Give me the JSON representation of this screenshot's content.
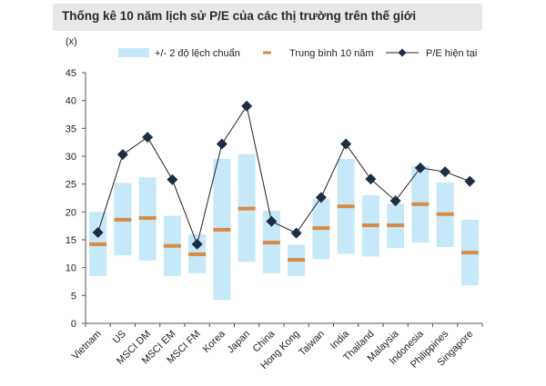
{
  "title": "Thống kê 10 năm lịch sử P/E của các thị trường trên thế giới",
  "chart_data": {
    "type": "range-bar-line",
    "title": "Thống kê 10 năm lịch sử P/E của các thị trường trên thế giới",
    "ylabel": "(x)",
    "xlabel": "",
    "ylim": [
      0,
      45
    ],
    "yticks": [
      0,
      5,
      10,
      15,
      20,
      25,
      30,
      35,
      40,
      45
    ],
    "grid": false,
    "legend_position": "top",
    "categories": [
      "Vietnam",
      "US",
      "MSCI DM",
      "MSCI EM",
      "MSCI FM",
      "Korea",
      "Japan",
      "China",
      "Hong Kong",
      "Taiwan",
      "India",
      "Thailand",
      "Malaysia",
      "Indonesia",
      "Philippines",
      "Singapore"
    ],
    "series": [
      {
        "name": "+/- 2 độ lệch chuẩn",
        "type": "range",
        "color": "#c5e9f9",
        "low": [
          8.5,
          12.2,
          11.3,
          8.5,
          9.0,
          4.2,
          11.0,
          9.0,
          8.5,
          11.5,
          12.5,
          12.0,
          13.5,
          14.5,
          13.7,
          6.8
        ],
        "high": [
          20.0,
          25.2,
          26.2,
          19.3,
          16.0,
          29.5,
          30.4,
          20.2,
          14.1,
          22.3,
          29.5,
          23.0,
          21.5,
          28.3,
          25.3,
          18.6
        ]
      },
      {
        "name": "Trung bình 10 năm",
        "type": "marker",
        "color": "#d98a45",
        "values": [
          14.2,
          18.6,
          18.9,
          13.9,
          12.4,
          16.8,
          20.6,
          14.5,
          11.4,
          17.1,
          21.0,
          17.6,
          17.6,
          21.4,
          19.6,
          12.7
        ]
      },
      {
        "name": "P/E hiện tại",
        "type": "line",
        "color": "#1e2d44",
        "values": [
          16.3,
          30.3,
          33.4,
          25.8,
          14.2,
          32.2,
          39.0,
          18.3,
          16.2,
          22.6,
          32.2,
          25.9,
          22.0,
          27.9,
          27.2,
          25.5
        ]
      }
    ]
  }
}
